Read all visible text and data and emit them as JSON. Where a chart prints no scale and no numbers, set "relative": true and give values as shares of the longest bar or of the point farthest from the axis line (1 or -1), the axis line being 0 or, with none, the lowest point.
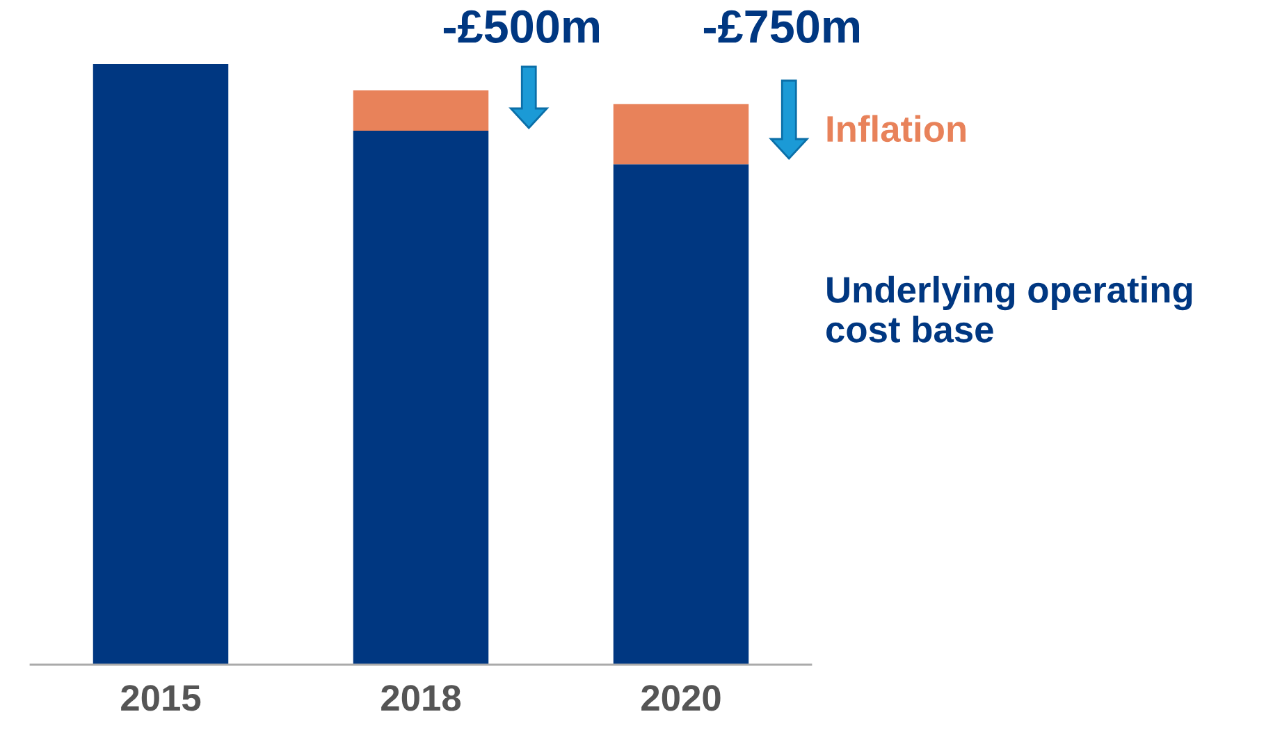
{
  "chart_data": {
    "type": "bar",
    "stacked": true,
    "relative": true,
    "categories": [
      "2015",
      "2018",
      "2020"
    ],
    "series": [
      {
        "name": "Underlying operating cost base",
        "color": "#003781",
        "values": [
          1.0,
          0.889,
          0.833
        ]
      },
      {
        "name": "Inflation",
        "color": "#e8825a",
        "values": [
          null,
          0.067,
          0.1
        ]
      }
    ],
    "annotations": [
      "-£500m",
      "-£750m"
    ]
  }
}
